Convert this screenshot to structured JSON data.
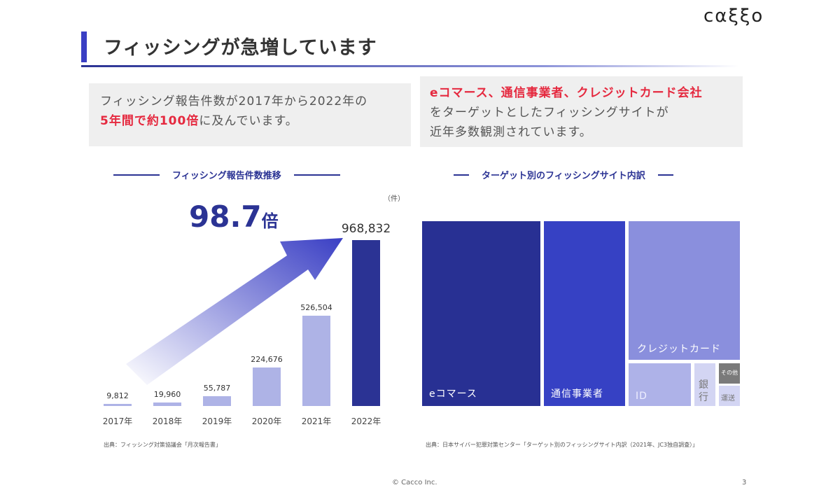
{
  "logo": "cαξξo",
  "title": "フィッシングが急増しています",
  "box1": {
    "line1": "フィッシング報告件数が2017年から2022年の",
    "highlight": "5年間で約100倍",
    "rest": "に及んでいます。"
  },
  "box2": {
    "highlight": "eコマース、通信事業者、クレジットカード会社",
    "line2": "をターゲットとしたフィッシングサイトが",
    "line3": "近年多数観測されています。"
  },
  "chart_data": [
    {
      "type": "bar",
      "title": "フィッシング報告件数推移",
      "unit": "（件）",
      "categories": [
        "2017年",
        "2018年",
        "2019年",
        "2020年",
        "2021年",
        "2022年"
      ],
      "values": [
        9812,
        19960,
        55787,
        224676,
        526504,
        968832
      ],
      "labels": [
        "9,812",
        "19,960",
        "55,787",
        "224,676",
        "526,504",
        "968,832"
      ],
      "annotation": {
        "value": "98.7",
        "suffix": "倍"
      },
      "source": "出典：フィッシング対策協議会「月次報告書」",
      "colors": {
        "default": "#aeb3e6",
        "highlight": "#2b3394"
      }
    },
    {
      "type": "treemap",
      "title": "ターゲット別のフィッシングサイト内訳",
      "items": [
        {
          "label": "eコマース",
          "color": "#283093"
        },
        {
          "label": "通信事業者",
          "color": "#3641c4"
        },
        {
          "label": "クレジットカード",
          "color": "#8a8fdd"
        },
        {
          "label": "ID",
          "color": "#aeb2e8"
        },
        {
          "label": "銀行",
          "color": "#d3d5f3"
        },
        {
          "label": "その他",
          "color": "#7a7a7a"
        },
        {
          "label": "運送",
          "color": "#d3d5f3"
        }
      ],
      "source": "出典：日本サイバー犯罪対策センター「ターゲット別のフィッシングサイト内訳（2021年、JC3独自調査）」"
    }
  ],
  "footer": "© Cacco Inc.",
  "page": "3"
}
